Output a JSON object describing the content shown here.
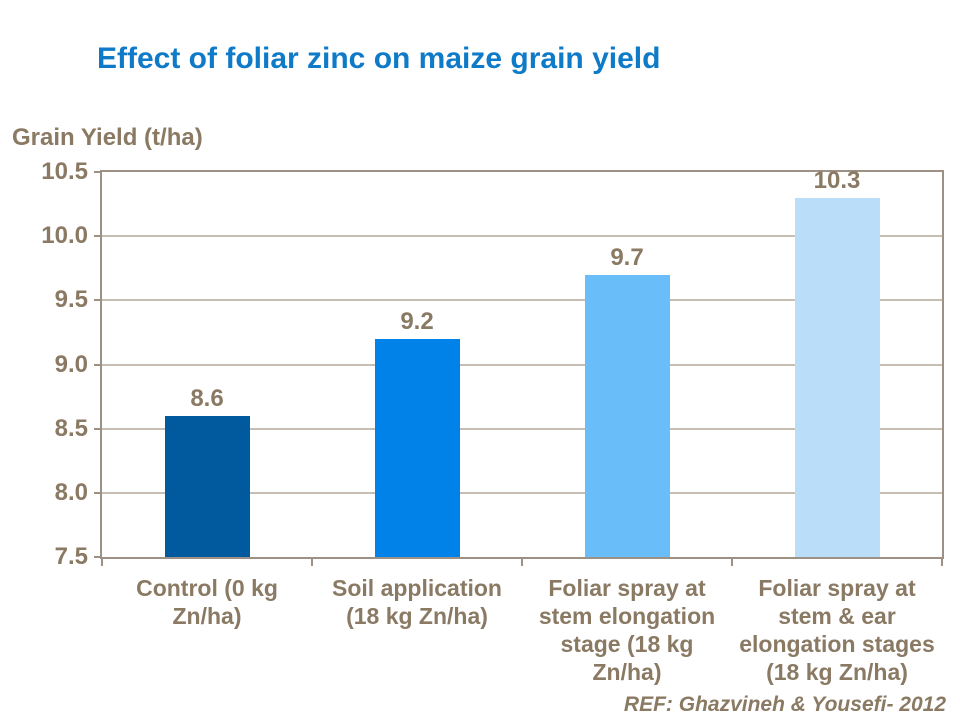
{
  "colors": {
    "title": "#0E7AC8",
    "text": "#8A7963",
    "axis": "#9C9184",
    "gridline": "#C6BEB2",
    "background": "#FFFFFF"
  },
  "chart_data": {
    "type": "bar",
    "title": "Effect of foliar zinc on maize grain yield",
    "ylabel": "Grain Yield (t/ha)",
    "xlabel": "",
    "categories": [
      "Control (0 kg\nZn/ha)",
      "Soil application\n(18 kg Zn/ha)",
      "Foliar spray at\nstem elongation\nstage (18 kg\nZn/ha)",
      "Foliar spray at\nstem & ear\nelongation stages\n(18 kg Zn/ha)"
    ],
    "values": [
      8.6,
      9.2,
      9.7,
      10.3
    ],
    "value_labels": [
      "8.6",
      "9.2",
      "9.7",
      "10.3"
    ],
    "bar_colors": [
      "#015A9D",
      "#0182E8",
      "#69BDF8",
      "#BADDFA"
    ],
    "ylim": [
      7.5,
      10.5
    ],
    "ytick_step": 0.5,
    "ytick_labels": [
      "7.5",
      "8.0",
      "8.5",
      "9.0",
      "9.5",
      "10.0",
      "10.5"
    ],
    "grid": true,
    "legend": false,
    "annotation": "REF: Ghazvineh & Yousefi- 2012"
  }
}
